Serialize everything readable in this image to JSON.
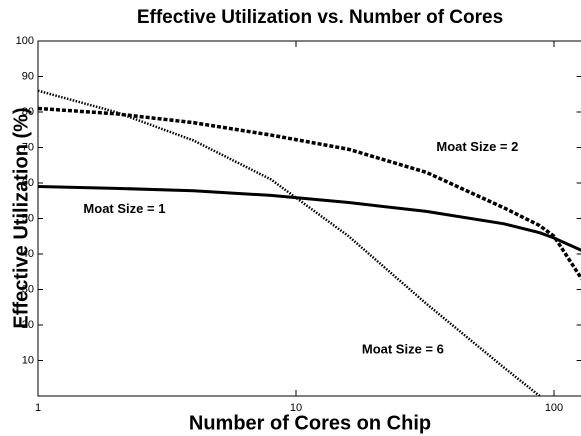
{
  "chart_data": {
    "type": "line",
    "title": "Effective Utilization vs. Number of Cores",
    "xlabel": "Number of Cores on Chip",
    "ylabel": "Effective Utilization (%)",
    "x": [
      1,
      2,
      4,
      8,
      16,
      32,
      64,
      88,
      100,
      128
    ],
    "series": [
      {
        "name": "Moat Size = 1",
        "color": "#000000",
        "dash": "solid",
        "values": [
          59,
          58.5,
          57.8,
          56.5,
          54.5,
          52,
          48.5,
          46,
          44.5,
          41
        ]
      },
      {
        "name": "Moat Size = 2",
        "color": "#000000",
        "dash": "dashed",
        "values": [
          81,
          79.5,
          77,
          73.5,
          69.5,
          63,
          53,
          48,
          45,
          33
        ]
      },
      {
        "name": "Moat Size = 6",
        "color": "#000000",
        "dash": "dotted",
        "values": [
          86,
          80,
          72,
          61,
          45,
          26,
          8,
          0,
          null,
          null
        ]
      }
    ],
    "xlim": [
      1,
      128
    ],
    "xticks": [
      1,
      10,
      100
    ],
    "xscale": "log",
    "ylim": [
      0,
      100
    ],
    "yticks": [
      10,
      20,
      30,
      40,
      50,
      60,
      70,
      80,
      90,
      100
    ],
    "annotations": [
      {
        "text": "Moat Size = 2",
        "x": 35,
        "y": 70
      },
      {
        "text": "Moat Size = 1",
        "x": 1.5,
        "y": 52.5
      },
      {
        "text": "Moat Size = 6",
        "x": 18,
        "y": 13
      }
    ]
  }
}
